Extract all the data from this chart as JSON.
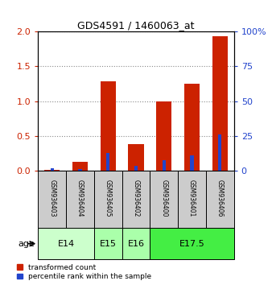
{
  "title": "GDS4591 / 1460063_at",
  "samples": [
    "GSM936403",
    "GSM936404",
    "GSM936405",
    "GSM936402",
    "GSM936400",
    "GSM936401",
    "GSM936406"
  ],
  "red_values": [
    0.02,
    0.13,
    1.28,
    0.38,
    1.0,
    1.25,
    1.93
  ],
  "blue_values_pct": [
    2.0,
    1.5,
    13.0,
    3.5,
    8.0,
    11.0,
    26.0
  ],
  "age_groups": [
    {
      "label": "E14",
      "indices": [
        0,
        1
      ],
      "color": "#ccffcc"
    },
    {
      "label": "E15",
      "indices": [
        2
      ],
      "color": "#aaffaa"
    },
    {
      "label": "E16",
      "indices": [
        3
      ],
      "color": "#aaffaa"
    },
    {
      "label": "E17.5",
      "indices": [
        4,
        5,
        6
      ],
      "color": "#44ee44"
    }
  ],
  "ylim_left": [
    0,
    2
  ],
  "ylim_right": [
    0,
    100
  ],
  "yticks_left": [
    0,
    0.5,
    1.0,
    1.5,
    2.0
  ],
  "yticks_right": [
    0,
    25,
    50,
    75,
    100
  ],
  "red_color": "#cc2200",
  "blue_color": "#2244cc",
  "bg_color": "#cccccc",
  "legend_red": "transformed count",
  "legend_blue": "percentile rank within the sample",
  "age_label": "age"
}
